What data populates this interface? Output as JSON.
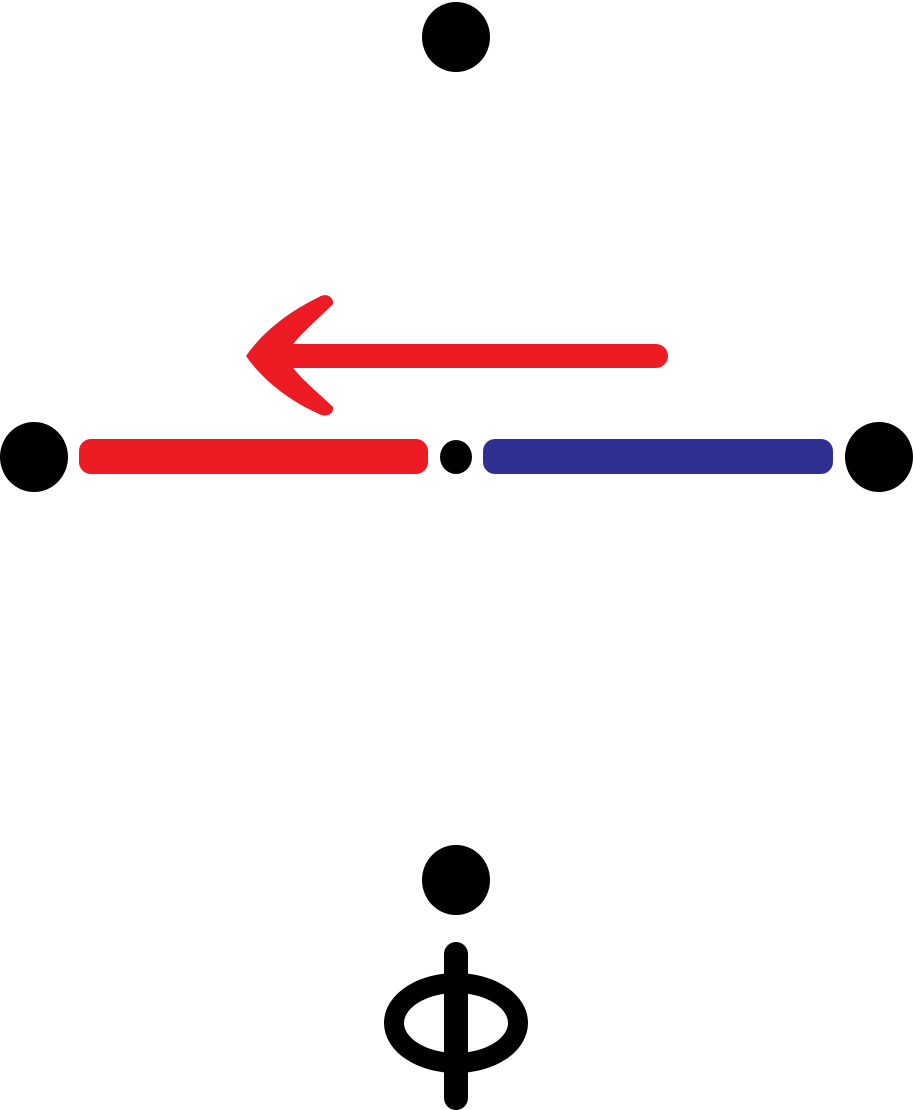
{
  "diagram": {
    "description_label": "",
    "colors": {
      "node": "#000000",
      "segment_left": "#ed1c24",
      "segment_right": "#2e3192",
      "arrow": "#ed1c24",
      "symbol": "#000000"
    },
    "nodes": [
      "node-top",
      "node-left",
      "node-center",
      "node-right",
      "node-bottom"
    ],
    "segments": [
      "left-segment",
      "right-segment"
    ],
    "arrow": {
      "direction": "left"
    },
    "symbol": {
      "name": "phi-symbol"
    }
  }
}
